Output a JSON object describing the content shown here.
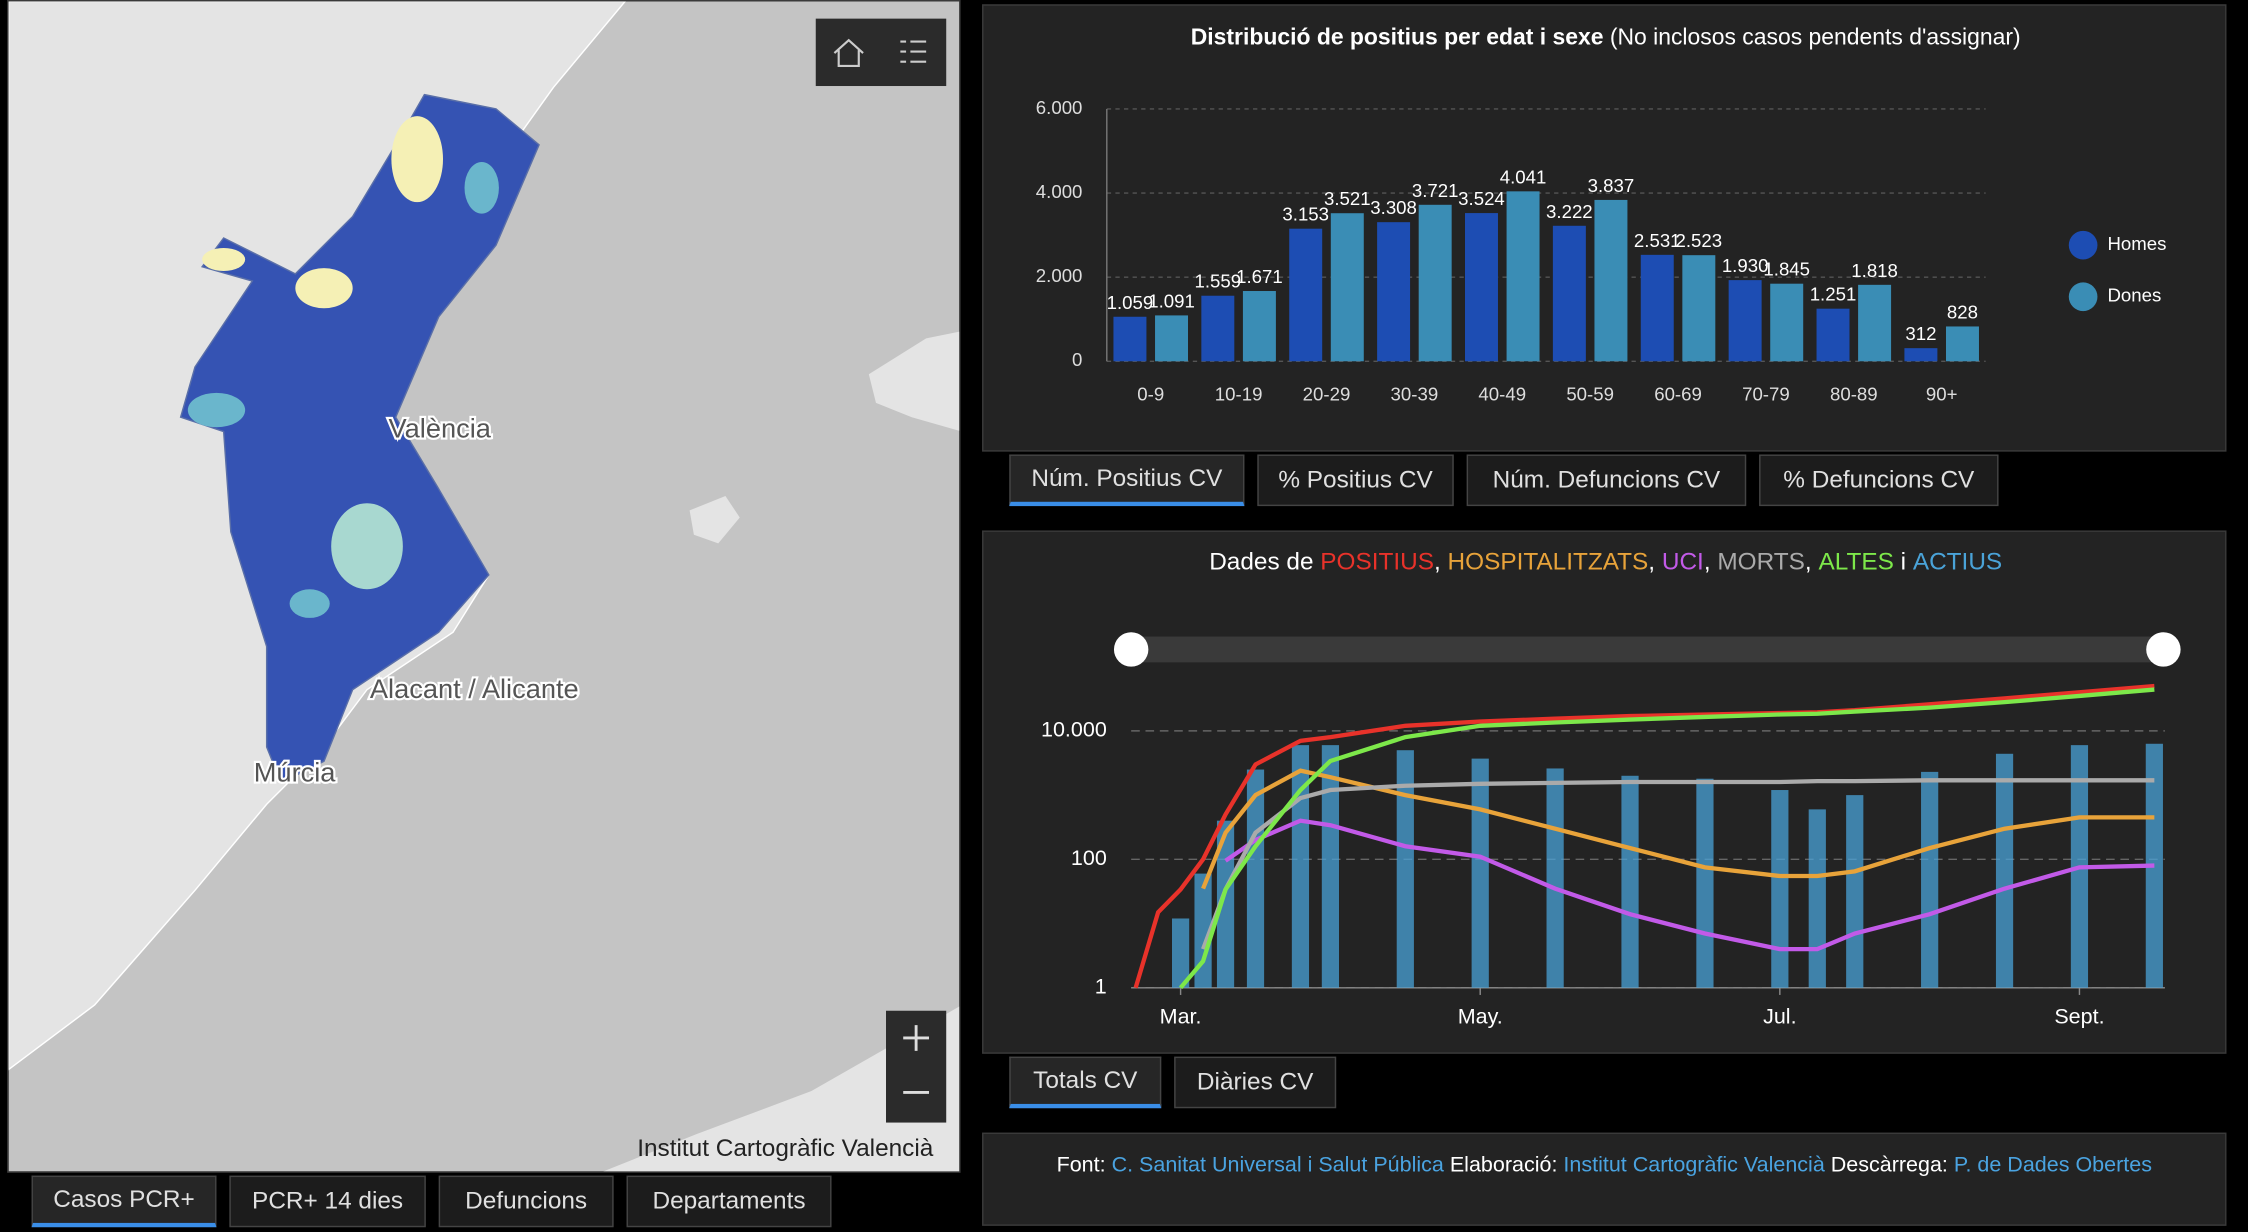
{
  "map": {
    "labels": [
      "València",
      "Alacant / Alicante",
      "Múrcia"
    ],
    "attribution": "Institut Cartogràfic Valencià"
  },
  "tabs": {
    "map": [
      "Casos PCR+",
      "PCR+ 14 dies",
      "Defuncions",
      "Departaments"
    ],
    "age": [
      "Núm. Positius CV",
      "% Positius CV",
      "Núm. Defuncions CV",
      "% Defuncions CV"
    ],
    "time": [
      "Totals CV",
      "Diàries CV"
    ]
  },
  "chart_data": [
    {
      "type": "bar",
      "title": "Distribució de positius per edat i sexe",
      "subtitle": "(No inclosos casos pendents d'assignar)",
      "categories": [
        "0-9",
        "10-19",
        "20-29",
        "30-39",
        "40-49",
        "50-59",
        "60-69",
        "70-79",
        "80-89",
        "90+"
      ],
      "series": [
        {
          "name": "Homes",
          "color": "#1d4db3",
          "values": [
            1059,
            1559,
            3153,
            3308,
            3524,
            3222,
            2531,
            1930,
            1251,
            312
          ],
          "value_labels": [
            "1.059",
            "1.559",
            "3.153",
            "3.308",
            "3.524",
            "3.222",
            "2.531",
            "1.930",
            "1.251",
            "312"
          ]
        },
        {
          "name": "Dones",
          "color": "#3a8db5",
          "values": [
            1091,
            1671,
            3521,
            3721,
            4041,
            3837,
            2523,
            1845,
            1818,
            828
          ],
          "value_labels": [
            "1.091",
            "1.671",
            "3.521",
            "3.721",
            "4.041",
            "3.837",
            "2.523",
            "1.845",
            "1.818",
            "828"
          ]
        }
      ],
      "ylim": [
        0,
        6000
      ],
      "yticks": [
        0,
        {
          "value": 2000,
          "label": "2.000"
        },
        {
          "value": 4000,
          "label": "4.000"
        },
        {
          "value": 6000,
          "label": "6.000"
        }
      ],
      "grid": true,
      "legend": "right"
    },
    {
      "type": "line",
      "title": "Dades de",
      "separator": ",",
      "conjunction": "i",
      "x": [
        2.7,
        2.85,
        3.0,
        3.15,
        3.3,
        3.5,
        3.8,
        4.0,
        4.5,
        5.0,
        5.5,
        6.0,
        6.5,
        7.0,
        7.25,
        7.5,
        8.0,
        8.5,
        9.0,
        9.5
      ],
      "series": [
        {
          "name": "POSITIUS",
          "color": "#e8322a",
          "kind": "line",
          "values": [
            1,
            15,
            34,
            100,
            500,
            3000,
            7000,
            8000,
            12000,
            14000,
            15500,
            17000,
            18000,
            19000,
            19500,
            21000,
            26000,
            32000,
            40000,
            50000
          ]
        },
        {
          "name": "HOSPITALITZATS",
          "color": "#e8a33a",
          "kind": "line",
          "values": [
            null,
            null,
            null,
            35,
            260,
            1000,
            2400,
            1900,
            1000,
            600,
            300,
            150,
            75,
            55,
            55,
            65,
            150,
            300,
            450,
            450
          ]
        },
        {
          "name": "UCI",
          "color": "#c25ae8",
          "kind": "line",
          "values": [
            null,
            null,
            null,
            null,
            95,
            200,
            400,
            340,
            160,
            110,
            35,
            14,
            7,
            4,
            4,
            7,
            14,
            35,
            75,
            80
          ]
        },
        {
          "name": "MORTS",
          "color": "#aaaaaa",
          "kind": "line",
          "values": [
            null,
            null,
            null,
            4,
            34,
            260,
            900,
            1200,
            1400,
            1500,
            1550,
            1600,
            1600,
            1600,
            1650,
            1650,
            1700,
            1700,
            1700,
            1700
          ]
        },
        {
          "name": "ALTES",
          "color": "#7de84a",
          "kind": "line",
          "values": [
            null,
            null,
            1,
            2.6,
            34,
            160,
            1200,
            3400,
            8000,
            12000,
            13500,
            15000,
            16500,
            18000,
            18500,
            20000,
            23000,
            28000,
            35000,
            44000
          ]
        },
        {
          "name": "ACTIUS",
          "color": "#4aa3d8",
          "kind": "bar",
          "values": [
            null,
            null,
            12,
            60,
            400,
            2500,
            6000,
            6000,
            5000,
            3700,
            2600,
            2000,
            1800,
            1200,
            600,
            1000,
            2300,
            4400,
            6000,
            6300
          ]
        }
      ],
      "log_y": true,
      "xlim": [
        2.67,
        9.57
      ],
      "xticks": [
        {
          "value": 3,
          "label": "Mar."
        },
        {
          "value": 5,
          "label": "May."
        },
        {
          "value": 7,
          "label": "Jul."
        },
        {
          "value": 9,
          "label": "Sept."
        }
      ],
      "ylim": [
        1,
        100000
      ],
      "yticks": [
        1,
        100,
        {
          "value": 10000,
          "label": "10.000"
        }
      ],
      "grid": true
    }
  ],
  "footer": {
    "source_label": "Font:",
    "source": "C. Sanitat Universal i Salut Pública",
    "made_label": "Elaboració:",
    "made": "Institut Cartogràfic Valencià",
    "download_label": "Descàrrega:",
    "download": "P. de Dades Obertes"
  }
}
